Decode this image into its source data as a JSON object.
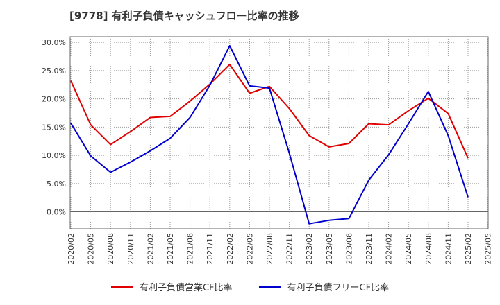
{
  "title": "[9778]  有利子負債キャッシュフロー比率の推移",
  "colors": {
    "series1": "#e00000",
    "series2": "#0000cc",
    "grid": "#999999",
    "axis": "#666666"
  },
  "chart_data": {
    "type": "line",
    "title": "[9778]  有利子負債キャッシュフロー比率の推移",
    "xlabel": "",
    "ylabel": "",
    "ylim": [
      -3,
      31
    ],
    "grid": true,
    "legend_position": "bottom",
    "y_ticks": [
      "30.0%",
      "25.0%",
      "20.0%",
      "15.0%",
      "10.0%",
      "5.0%",
      "0.0%"
    ],
    "y_tick_values": [
      30,
      25,
      20,
      15,
      10,
      5,
      0
    ],
    "x_ticks": [
      "2020/02",
      "2020/05",
      "2020/08",
      "2020/11",
      "2021/02",
      "2021/05",
      "2021/08",
      "2021/11",
      "2022/02",
      "2022/05",
      "2022/08",
      "2022/11",
      "2023/02",
      "2023/05",
      "2023/08",
      "2023/11",
      "2024/02",
      "2024/05",
      "2024/08",
      "2024/11",
      "2025/02",
      "2025/05"
    ],
    "x": [
      "2020/02",
      "2020/05",
      "2020/08",
      "2020/11",
      "2021/02",
      "2021/05",
      "2021/08",
      "2021/11",
      "2022/02",
      "2022/05",
      "2022/08",
      "2022/11",
      "2023/02",
      "2023/05",
      "2023/08",
      "2023/11",
      "2024/02",
      "2024/05",
      "2024/08",
      "2024/11",
      "2025/02"
    ],
    "series": [
      {
        "name": "有利子負債営業CF比率",
        "values": [
          23.2,
          15.4,
          11.9,
          14.2,
          16.7,
          16.9,
          19.6,
          22.6,
          26.1,
          21.0,
          22.2,
          18.3,
          13.5,
          11.5,
          12.1,
          15.6,
          15.4,
          17.9,
          20.1,
          17.4,
          9.5
        ]
      },
      {
        "name": "有利子負債フリーCF比率",
        "values": [
          15.7,
          9.9,
          7.0,
          8.8,
          10.8,
          13.0,
          16.7,
          22.4,
          29.4,
          22.3,
          21.9,
          10.4,
          -2.1,
          -1.5,
          -1.2,
          5.6,
          10.1,
          15.6,
          21.3,
          13.5,
          2.6
        ]
      }
    ]
  }
}
